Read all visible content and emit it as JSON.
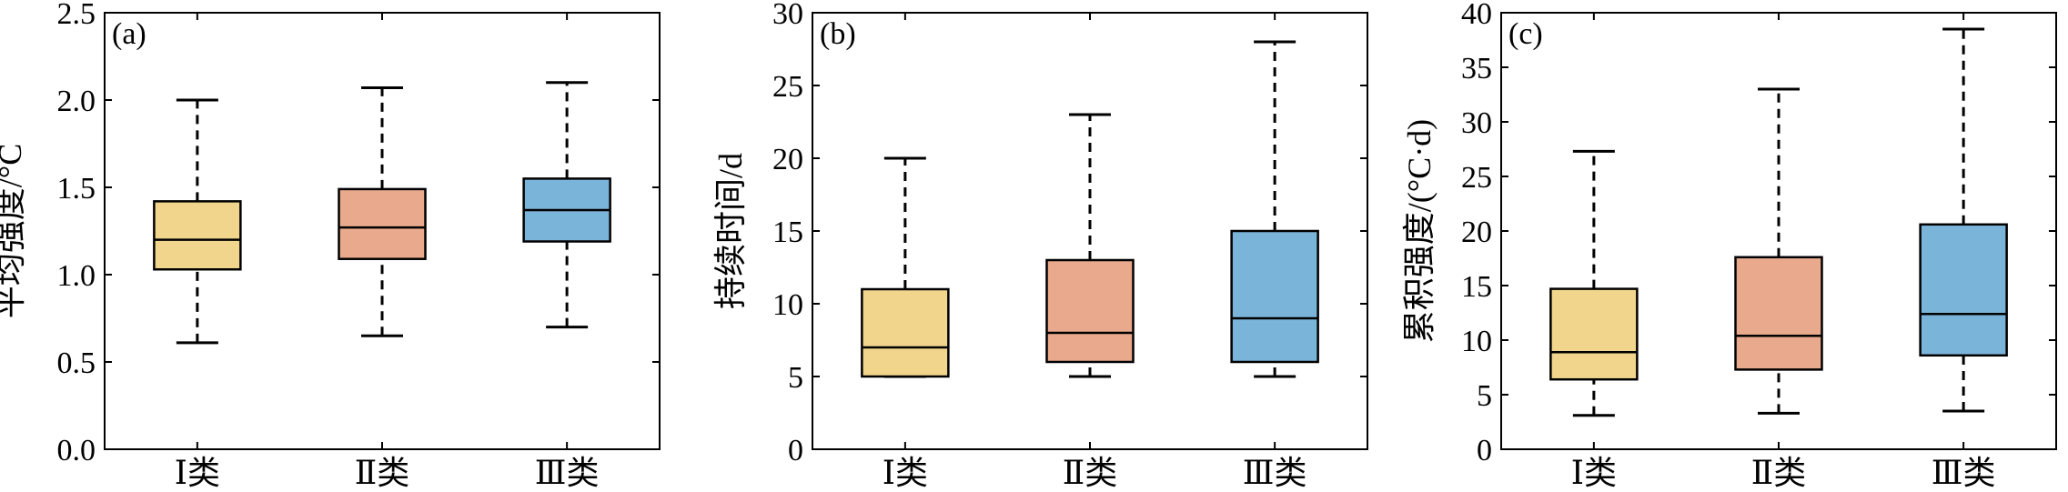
{
  "chart_data": [
    {
      "type": "box",
      "panel_tag": "(a)",
      "ylabel": "平均强度/°C",
      "ylim": [
        0.0,
        2.5
      ],
      "yticks": [
        "0.0",
        "0.5",
        "1.0",
        "1.5",
        "2.0",
        "2.5"
      ],
      "ytick_values": [
        0.0,
        0.5,
        1.0,
        1.5,
        2.0,
        2.5
      ],
      "categories": [
        "Ⅰ类",
        "Ⅱ类",
        "Ⅲ类"
      ],
      "colors": [
        "#f2d58c",
        "#e8a98c",
        "#7bb4d9"
      ],
      "boxes": [
        {
          "min": 0.61,
          "q1": 1.03,
          "median": 1.2,
          "q3": 1.42,
          "max": 2.0
        },
        {
          "min": 0.65,
          "q1": 1.09,
          "median": 1.27,
          "q3": 1.49,
          "max": 2.07
        },
        {
          "min": 0.7,
          "q1": 1.19,
          "median": 1.37,
          "q3": 1.55,
          "max": 2.1
        }
      ]
    },
    {
      "type": "box",
      "panel_tag": "(b)",
      "ylabel": "持续时间/d",
      "ylim": [
        0,
        30
      ],
      "yticks": [
        "0",
        "5",
        "10",
        "15",
        "20",
        "25",
        "30"
      ],
      "ytick_values": [
        0,
        5,
        10,
        15,
        20,
        25,
        30
      ],
      "categories": [
        "Ⅰ类",
        "Ⅱ类",
        "Ⅲ类"
      ],
      "colors": [
        "#f2d58c",
        "#e8a98c",
        "#7bb4d9"
      ],
      "boxes": [
        {
          "min": 5,
          "q1": 5,
          "median": 7,
          "q3": 11,
          "max": 20
        },
        {
          "min": 5,
          "q1": 6,
          "median": 8,
          "q3": 13,
          "max": 23
        },
        {
          "min": 5,
          "q1": 6,
          "median": 9,
          "q3": 15,
          "max": 28
        }
      ]
    },
    {
      "type": "box",
      "panel_tag": "(c)",
      "ylabel": "累积强度/(°C·d)",
      "ylim": [
        0,
        40
      ],
      "yticks": [
        "0",
        "5",
        "10",
        "15",
        "20",
        "25",
        "30",
        "35",
        "40"
      ],
      "ytick_values": [
        0,
        5,
        10,
        15,
        20,
        25,
        30,
        35,
        40
      ],
      "categories": [
        "Ⅰ类",
        "Ⅱ类",
        "Ⅲ类"
      ],
      "colors": [
        "#f2d58c",
        "#e8a98c",
        "#7bb4d9"
      ],
      "boxes": [
        {
          "min": 3.1,
          "q1": 6.4,
          "median": 8.9,
          "q3": 14.7,
          "max": 27.3
        },
        {
          "min": 3.3,
          "q1": 7.3,
          "median": 10.4,
          "q3": 17.6,
          "max": 33.0
        },
        {
          "min": 3.5,
          "q1": 8.6,
          "median": 12.4,
          "q3": 20.6,
          "max": 38.5
        }
      ]
    }
  ]
}
